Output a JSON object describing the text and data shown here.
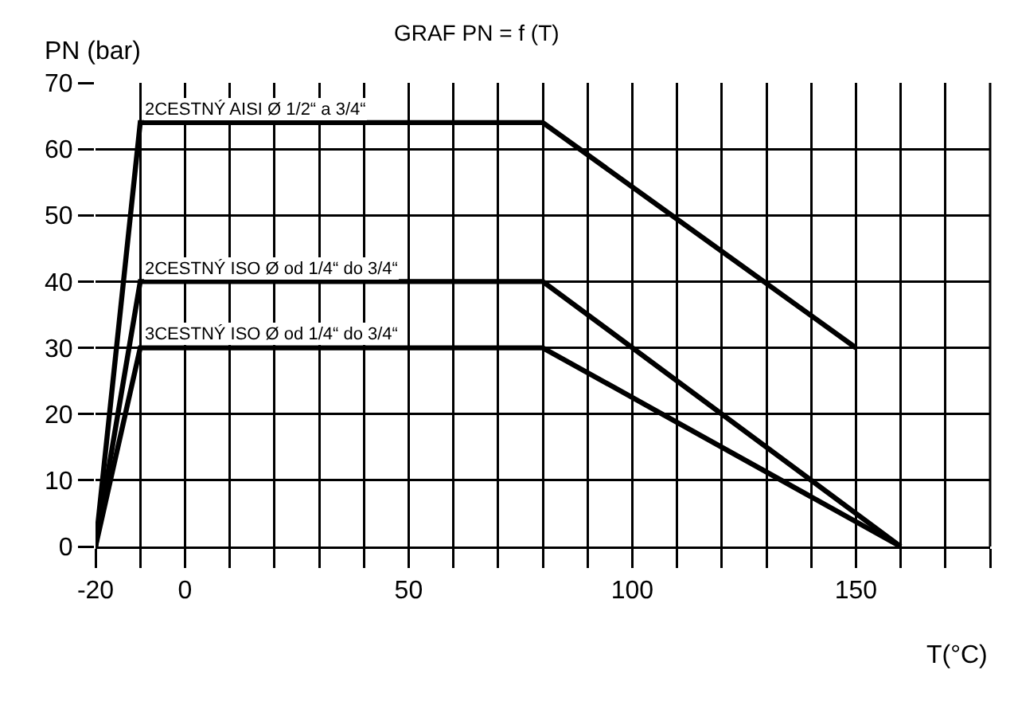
{
  "chart_data": {
    "type": "line",
    "title": "GRAF PN = f (T)",
    "xlabel": "T(°C)",
    "ylabel": "PN (bar)",
    "xlim": [
      -20,
      180
    ],
    "xticks": [
      -20,
      {
        "value": -10,
        "label": null
      },
      0,
      {
        "value": 10,
        "label": null
      },
      {
        "value": 20,
        "label": null
      },
      {
        "value": 30,
        "label": null
      },
      {
        "value": 40,
        "label": null
      },
      50,
      {
        "value": 60,
        "label": null
      },
      {
        "value": 70,
        "label": null
      },
      {
        "value": 80,
        "label": null
      },
      {
        "value": 90,
        "label": null
      },
      100,
      {
        "value": 110,
        "label": null
      },
      {
        "value": 120,
        "label": null
      },
      {
        "value": 130,
        "label": null
      },
      {
        "value": 140,
        "label": null
      },
      150,
      {
        "value": 160,
        "label": null
      },
      {
        "value": 170,
        "label": null
      },
      {
        "value": 180,
        "label": null
      }
    ],
    "ylim": [
      0,
      70
    ],
    "yticks": [
      0,
      10,
      20,
      30,
      40,
      50,
      60,
      70
    ],
    "grid": true,
    "legend": false,
    "marker": "none",
    "line_style": "solid",
    "series": [
      {
        "name": "2CESTNÝ AISI Ø 1/2“ a 3/4“",
        "color": "#000000",
        "x": [
          -20,
          -10,
          80,
          150
        ],
        "values": [
          0,
          64,
          64,
          30
        ]
      },
      {
        "name": "2CESTNÝ ISO Ø od 1/4“ do 3/4“",
        "color": "#000000",
        "x": [
          -20,
          -10,
          80,
          160
        ],
        "values": [
          0,
          40,
          40,
          0
        ]
      },
      {
        "name": "3CESTNÝ ISO Ø od 1/4“ do 3/4“",
        "color": "#000000",
        "x": [
          -20,
          -10,
          80,
          160
        ],
        "values": [
          0,
          30,
          30,
          0
        ]
      }
    ]
  }
}
